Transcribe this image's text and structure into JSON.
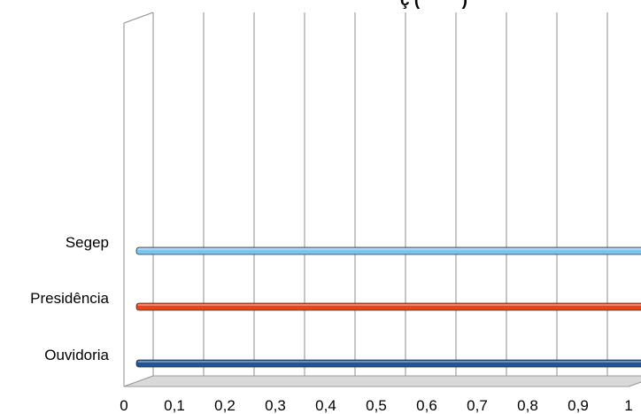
{
  "chart_data": {
    "type": "bar",
    "orientation": "horizontal",
    "title": "ç (         )",
    "categories": [
      "Ouvidoria",
      "Presidência",
      "Segep"
    ],
    "values": [
      1,
      1,
      1
    ],
    "bar_colors": [
      "#1f5496",
      "#e8461a",
      "#7ec3ec"
    ],
    "xlim": [
      0,
      1
    ],
    "x_ticks": [
      "0",
      "0,1",
      "0,2",
      "0,3",
      "0,4",
      "0,5",
      "0,6",
      "0,7",
      "0,8",
      "0,9",
      "1"
    ],
    "grid": "vertical",
    "legend": "none"
  }
}
